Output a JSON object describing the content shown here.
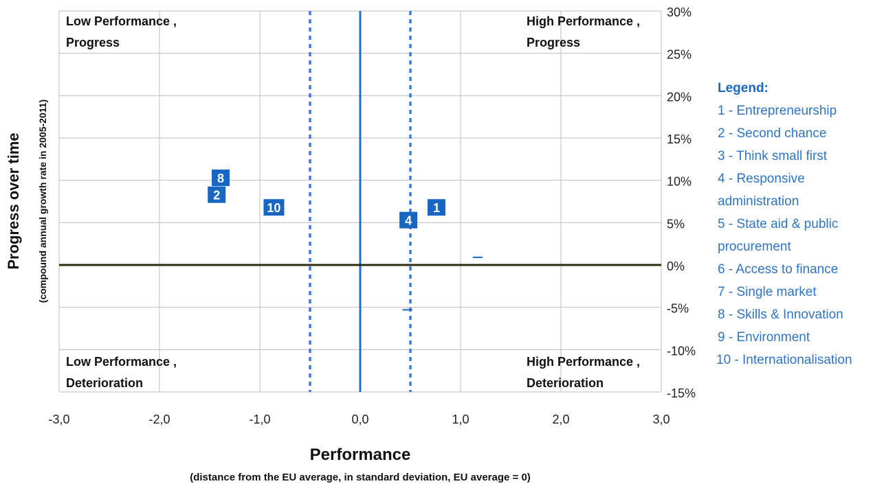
{
  "chart_data": {
    "type": "scatter",
    "title": "",
    "xlabel": "Performance",
    "xlabel_sub": "(distance from the EU average,  in standard deviation, EU average = 0)",
    "ylabel": "Progress over time",
    "ylabel_sub": "(compound annual growth rate in 2005-2011)",
    "xlim": [
      -3.0,
      3.0
    ],
    "ylim": [
      -15,
      30
    ],
    "x_ticks": [
      -3.0,
      -2.0,
      -1.0,
      0.0,
      1.0,
      2.0,
      3.0
    ],
    "x_tick_labels": [
      "-3,0",
      "-2,0",
      "-1,0",
      "0,0",
      "1,0",
      "2,0",
      "3,0"
    ],
    "y_ticks": [
      30,
      25,
      20,
      15,
      10,
      5,
      0,
      -5,
      -10,
      -15
    ],
    "y_tick_labels": [
      "30%",
      "25%",
      "20%",
      "15%",
      "10%",
      "5%",
      "0%",
      "-5%",
      "-10%",
      "-15%"
    ],
    "y_axis_position": "right",
    "grid": true,
    "reference_lines": {
      "solid_vertical_x": 0.0,
      "dashed_vertical_x": [
        -0.5,
        0.5
      ],
      "solid_horizontal_y": 0
    },
    "quadrant_labels": {
      "top_left": [
        "Low Performance ,",
        "Progress"
      ],
      "top_right": [
        "High Performance ,",
        "Progress"
      ],
      "bottom_left": [
        "Low Performance ,",
        "Deterioration"
      ],
      "bottom_right": [
        "High Performance ,",
        "Deterioration"
      ]
    },
    "points": [
      {
        "label": "8",
        "x": -1.39,
        "y": 10.3
      },
      {
        "label": "2",
        "x": -1.43,
        "y": 8.3
      },
      {
        "label": "10",
        "x": -0.86,
        "y": 6.8
      },
      {
        "label": "4",
        "x": 0.48,
        "y": 5.3
      },
      {
        "label": "1",
        "x": 0.76,
        "y": 6.8
      },
      {
        "label": "",
        "x": 1.17,
        "y": 0.9
      },
      {
        "label": "",
        "x": 0.47,
        "y": -5.3
      }
    ],
    "legend": {
      "title": "Legend:",
      "items": [
        "1 - Entrepreneurship",
        "2 - Second chance",
        "3 - Think small first",
        "4 - Responsive administration",
        "5 - State aid & public procurement",
        "6 -  Access to finance",
        "7 - Single market",
        "8 - Skills & Innovation",
        "9 - Environment",
        "10 - Internationalisation"
      ],
      "placement": "right"
    },
    "colors": {
      "marker": "#1766c2",
      "marker_text": "#ffffff",
      "vertical_axis": "#1f6fd0",
      "dashed_lines": "#3c7bdc",
      "horizontal_axis": "#2b2b10",
      "grid": "#bdbdbd",
      "legend_text": "#2f74c6"
    }
  }
}
